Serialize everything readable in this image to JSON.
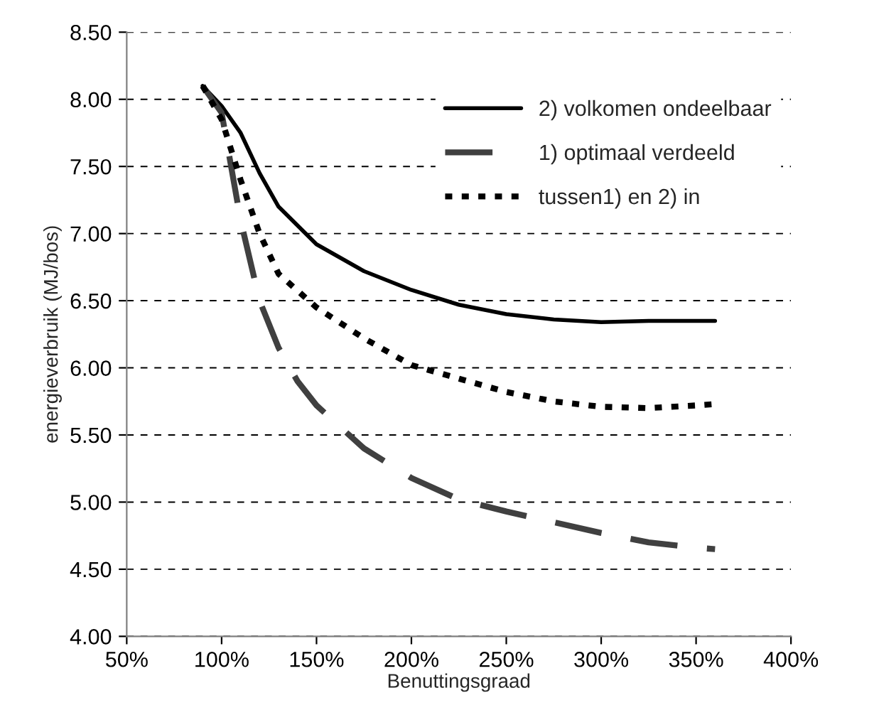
{
  "chart_data": {
    "type": "line",
    "xlabel": "Benuttingsgraad",
    "ylabel": "energieverbruik (MJ/bos)",
    "x": [
      90,
      100,
      110,
      120,
      130,
      150,
      175,
      200,
      225,
      250,
      275,
      300,
      325,
      350,
      360
    ],
    "series": [
      {
        "name": "2) volkomen ondeelbaar",
        "color": "#000000",
        "line_style": "solid",
        "values": [
          8.1,
          7.95,
          7.75,
          7.45,
          7.2,
          6.92,
          6.72,
          6.58,
          6.47,
          6.4,
          6.36,
          6.34,
          6.35,
          6.35,
          6.35
        ]
      },
      {
        "name": "1) optimaal verdeeld",
        "color": "#404040",
        "line_style": "dashed",
        "x": [
          90,
          100,
          110,
          120,
          130,
          140,
          150,
          175,
          200,
          225,
          250,
          275,
          300,
          325,
          350,
          360
        ],
        "values": [
          8.1,
          7.9,
          7.1,
          6.5,
          6.15,
          5.9,
          5.72,
          5.4,
          5.18,
          5.02,
          4.93,
          4.85,
          4.77,
          4.7,
          4.66,
          4.65
        ]
      },
      {
        "name": "tussen1) en 2) in",
        "color": "#000000",
        "line_style": "dotted",
        "values": [
          8.1,
          7.85,
          7.4,
          7.0,
          6.7,
          6.45,
          6.22,
          6.02,
          5.92,
          5.82,
          5.75,
          5.71,
          5.7,
          5.72,
          5.73
        ]
      }
    ],
    "xlim": [
      50,
      400
    ],
    "xticks": [
      {
        "value": 50,
        "label": "50%"
      },
      {
        "value": 100,
        "label": "100%"
      },
      {
        "value": 150,
        "label": "150%"
      },
      {
        "value": 200,
        "label": "200%"
      },
      {
        "value": 250,
        "label": "250%"
      },
      {
        "value": 300,
        "label": "300%"
      },
      {
        "value": 350,
        "label": "350%"
      },
      {
        "value": 400,
        "label": "400%"
      }
    ],
    "ylim": [
      4,
      8.5
    ],
    "yticks": [
      {
        "value": 4,
        "label": "4.00"
      },
      {
        "value": 4.5,
        "label": "4.50"
      },
      {
        "value": 5,
        "label": "5.00"
      },
      {
        "value": 5.5,
        "label": "5.50"
      },
      {
        "value": 6,
        "label": "6.00"
      },
      {
        "value": 6.5,
        "label": "6.50"
      },
      {
        "value": 7,
        "label": "7.00"
      },
      {
        "value": 7.5,
        "label": "7.50"
      },
      {
        "value": 8,
        "label": "8.00"
      },
      {
        "value": 8.5,
        "label": "8.50"
      }
    ],
    "grid": "y",
    "legend": "top right",
    "marker": "none"
  }
}
